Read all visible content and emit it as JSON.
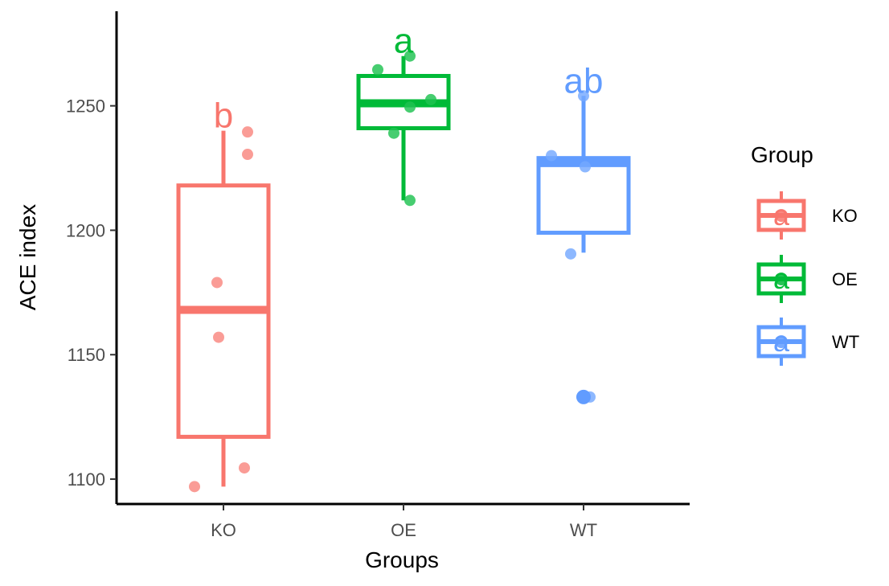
{
  "chart_data": {
    "type": "boxplot",
    "title": "",
    "xlabel": "Groups",
    "ylabel": "ACE index",
    "ylim": [
      1090,
      1288
    ],
    "yticks": [
      1100,
      1150,
      1200,
      1250
    ],
    "tick_labels": [
      "1100",
      "1150",
      "1200",
      "1250"
    ],
    "categories": [
      "KO",
      "OE",
      "WT"
    ],
    "legend": {
      "title": "Group",
      "position": "right",
      "entries": [
        "KO",
        "OE",
        "WT"
      ],
      "key_letter": "a"
    },
    "colors": {
      "KO": "#F8766D",
      "OE": "#00BA38",
      "WT": "#619CFF"
    },
    "series": [
      {
        "name": "KO",
        "min": 1097,
        "q1": 1117,
        "median": 1168,
        "q3": 1218,
        "max": 1240,
        "outliers": [],
        "points": [
          1097,
          1104.5,
          1157,
          1179,
          1230.5,
          1239.5
        ],
        "significance": "b"
      },
      {
        "name": "OE",
        "min": 1212,
        "q1": 1241,
        "median": 1251,
        "q3": 1262,
        "max": 1270,
        "outliers": [],
        "points": [
          1212,
          1239,
          1249.5,
          1252.5,
          1264.5,
          1270
        ],
        "significance": "a"
      },
      {
        "name": "WT",
        "min": 1191,
        "q1": 1199,
        "median": 1227,
        "q3": 1229,
        "max": 1254,
        "outliers": [
          1133
        ],
        "points": [
          1133,
          1133,
          1190.5,
          1225.5,
          1230,
          1254
        ],
        "significance": "ab"
      }
    ]
  }
}
